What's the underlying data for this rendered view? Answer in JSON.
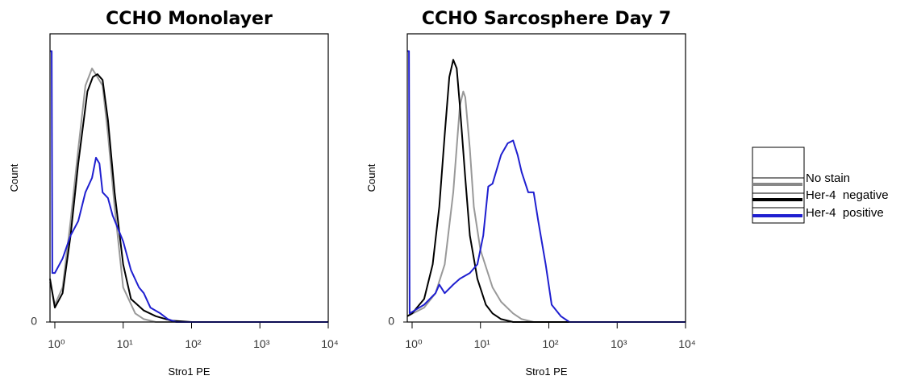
{
  "chart_data": [
    {
      "type": "line",
      "title": "CCHO Monolayer",
      "x_label": "Stro1 PE",
      "y_label": "Count",
      "x_log": true,
      "xlim": [
        0.85,
        10000
      ],
      "ylim": [
        0,
        100
      ],
      "xticks": [
        {
          "value": 1,
          "label": "10⁰"
        },
        {
          "value": 10,
          "label": "10¹"
        },
        {
          "value": 100,
          "label": "10²"
        },
        {
          "value": 1000,
          "label": "10³"
        },
        {
          "value": 10000,
          "label": "10⁴"
        }
      ],
      "yticks": [
        0
      ],
      "series": [
        {
          "color": "#999999",
          "x": [
            0.85,
            1,
            1.3,
            1.7,
            2.2,
            2.8,
            3.5,
            4.2,
            5,
            6,
            7.5,
            10,
            15,
            20,
            30,
            10000
          ],
          "values": [
            14,
            6,
            12,
            35,
            60,
            82,
            88,
            85,
            82,
            65,
            40,
            12,
            3,
            1,
            0,
            0
          ]
        },
        {
          "color": "#000000",
          "x": [
            0.85,
            1,
            1.3,
            1.7,
            2.2,
            3,
            3.6,
            4.2,
            5,
            6,
            7.5,
            10,
            13,
            20,
            30,
            50,
            100,
            10000
          ],
          "values": [
            15,
            5,
            10,
            30,
            55,
            80,
            85,
            86,
            84,
            70,
            45,
            20,
            8,
            4,
            2,
            0.5,
            0,
            0
          ]
        },
        {
          "color": "#1f1fd0",
          "x": [
            0.85,
            0.9,
            0.92,
            1,
            1.3,
            1.7,
            2.2,
            2.8,
            3.5,
            4,
            4.5,
            5,
            6,
            7,
            10,
            13,
            17,
            20,
            25,
            35,
            45,
            60,
            10000
          ],
          "values": [
            94,
            94,
            17,
            17,
            22,
            30,
            35,
            45,
            50,
            57,
            55,
            45,
            43,
            37,
            28,
            18,
            12,
            10,
            5,
            3,
            1,
            0,
            0
          ]
        }
      ]
    },
    {
      "type": "line",
      "title": "CCHO Sarcosphere Day 7",
      "x_label": "Stro1 PE",
      "y_label": "Count",
      "x_log": true,
      "xlim": [
        0.85,
        10000
      ],
      "ylim": [
        0,
        100
      ],
      "xticks": [
        {
          "value": 1,
          "label": "10⁰"
        },
        {
          "value": 10,
          "label": "10¹"
        },
        {
          "value": 100,
          "label": "10²"
        },
        {
          "value": 1000,
          "label": "10³"
        },
        {
          "value": 10000,
          "label": "10⁴"
        }
      ],
      "yticks": [
        0
      ],
      "series": [
        {
          "color": "#999999",
          "x": [
            0.85,
            1.5,
            2.2,
            3,
            4,
            5,
            5.6,
            6,
            7,
            8,
            10,
            15,
            20,
            30,
            40,
            60,
            10000
          ],
          "values": [
            2,
            5,
            10,
            20,
            45,
            75,
            80,
            78,
            60,
            40,
            25,
            12,
            7,
            3,
            1,
            0,
            0
          ]
        },
        {
          "color": "#000000",
          "x": [
            0.85,
            1,
            1.5,
            2,
            2.5,
            3,
            3.5,
            4,
            4.5,
            5,
            6,
            7,
            9,
            12,
            15,
            20,
            30,
            10000
          ],
          "values": [
            2,
            3,
            8,
            20,
            40,
            65,
            85,
            91,
            88,
            75,
            50,
            30,
            15,
            6,
            3,
            1,
            0,
            0
          ]
        },
        {
          "color": "#1f1fd0",
          "x": [
            0.85,
            0.9,
            0.92,
            1.5,
            2.2,
            2.5,
            3,
            4,
            5,
            7,
            9,
            11,
            13,
            15,
            20,
            25,
            30,
            35,
            40,
            50,
            60,
            70,
            90,
            110,
            150,
            200,
            10000
          ],
          "values": [
            94,
            94,
            3,
            6,
            10,
            13,
            10,
            13,
            15,
            17,
            20,
            30,
            47,
            48,
            58,
            62,
            63,
            58,
            52,
            45,
            45,
            35,
            20,
            6,
            2,
            0,
            0
          ]
        }
      ]
    }
  ],
  "legend": {
    "entries": [
      {
        "name": "No stain",
        "color": "#888888"
      },
      {
        "name": "Her-4  negative",
        "color": "#000000"
      },
      {
        "name": "Her-4  positive",
        "color": "#1f1fd0"
      }
    ]
  }
}
